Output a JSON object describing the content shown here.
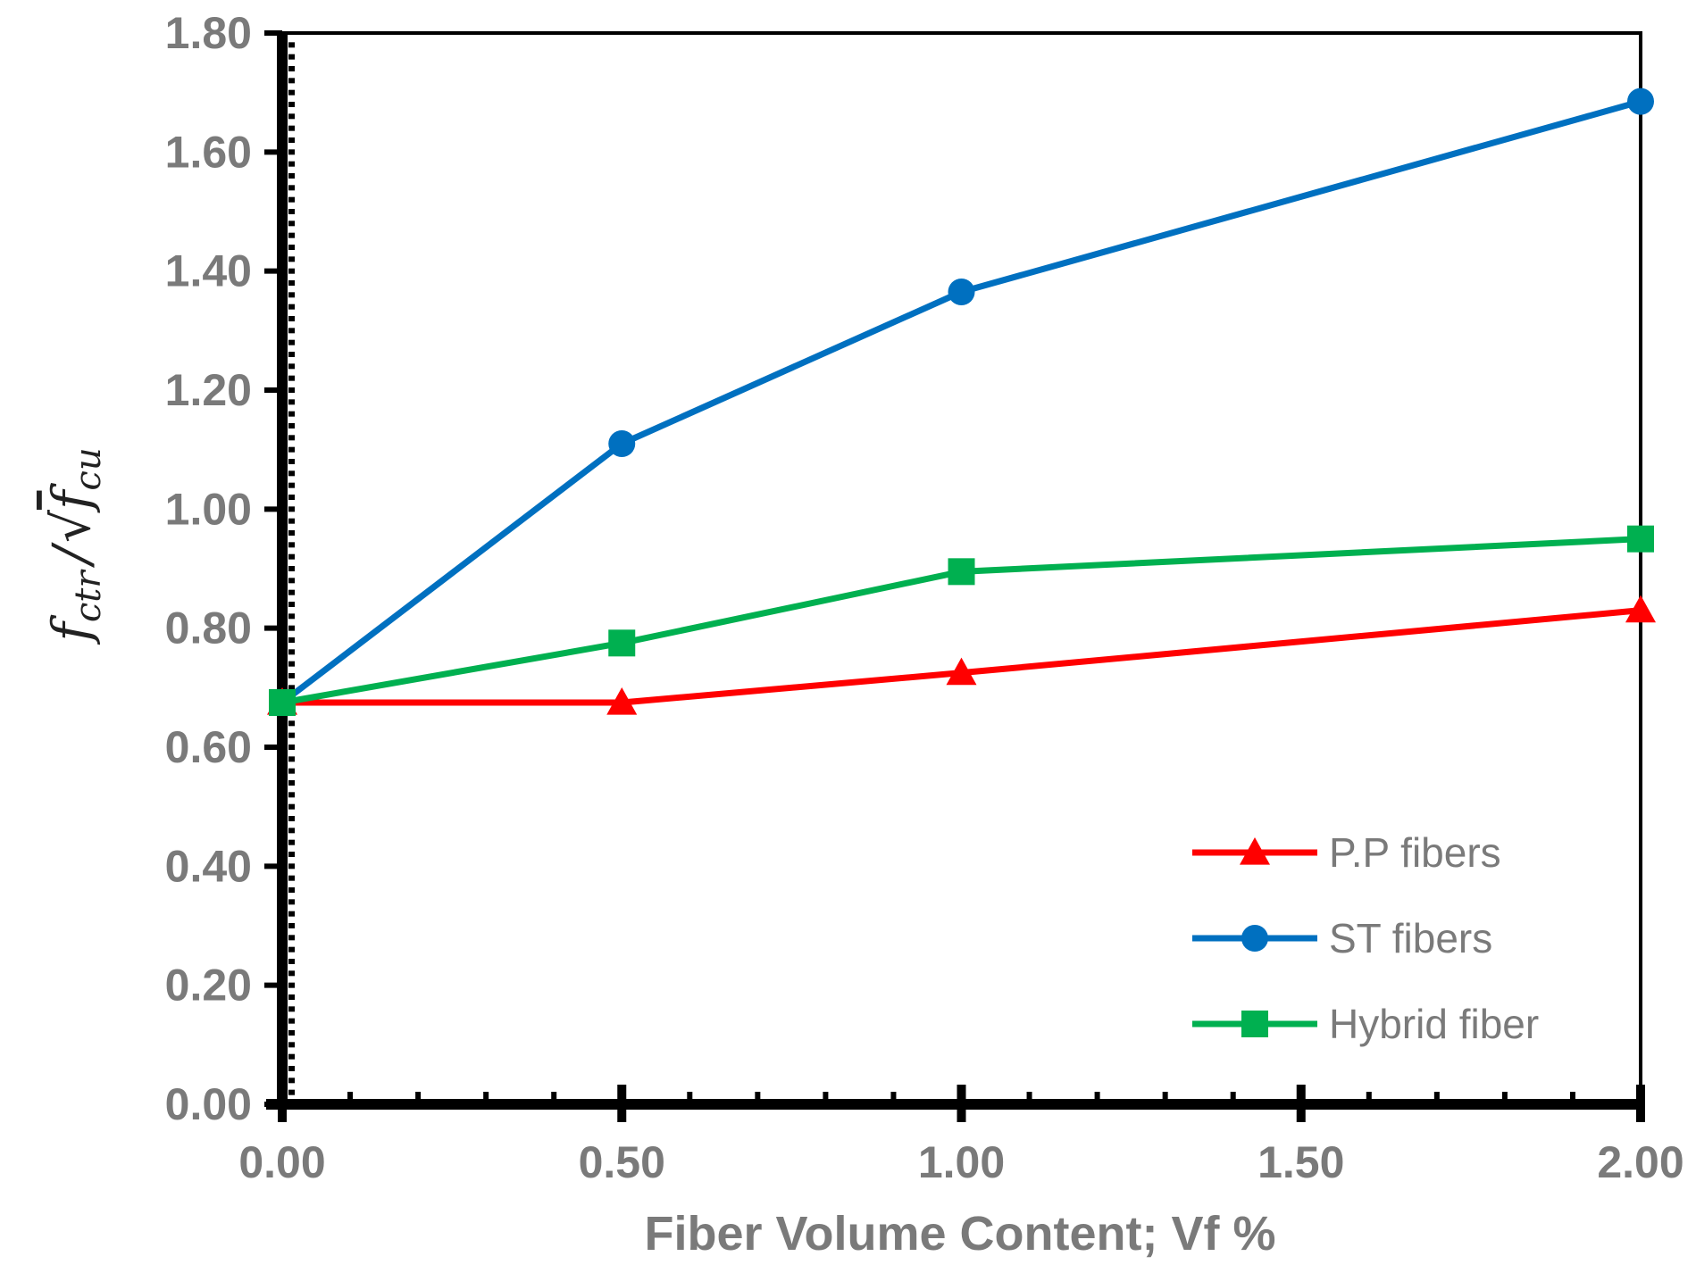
{
  "chart_data": {
    "type": "line",
    "title": "",
    "xlabel": "Fiber Volume Content; Vf %",
    "ylabel": {
      "numerator_symbol": "f",
      "numerator_subscript": "ctr",
      "separator": "/",
      "radical": "√",
      "denominator_symbol": "f",
      "denominator_subscript": "cu"
    },
    "xlim": [
      0,
      2
    ],
    "ylim": [
      0,
      1.8
    ],
    "xticks": [
      0,
      0.5,
      1,
      1.5,
      2
    ],
    "xtick_labels": [
      "0.00",
      "0.50",
      "1.00",
      "1.50",
      "2.00"
    ],
    "yticks": [
      0,
      0.2,
      0.4,
      0.6,
      0.8,
      1.0,
      1.2,
      1.4,
      1.6,
      1.8
    ],
    "ytick_labels": [
      "0.00",
      "0.20",
      "0.40",
      "0.60",
      "0.80",
      "1.00",
      "1.20",
      "1.40",
      "1.60",
      "1.80"
    ],
    "grid": false,
    "legend_position": "bottom-right",
    "series": [
      {
        "name": "P.P fibers",
        "color": "#ff0000",
        "marker": "triangle",
        "x": [
          0,
          0.5,
          1,
          2
        ],
        "y": [
          0.675,
          0.675,
          0.725,
          0.83
        ]
      },
      {
        "name": "ST fibers",
        "color": "#0070c0",
        "marker": "circle",
        "x": [
          0,
          0.5,
          1,
          2
        ],
        "y": [
          0.675,
          1.11,
          1.365,
          1.685
        ]
      },
      {
        "name": "Hybrid fiber",
        "color": "#00b050",
        "marker": "square",
        "x": [
          0,
          0.5,
          1,
          2
        ],
        "y": [
          0.675,
          0.775,
          0.895,
          0.95
        ]
      }
    ]
  }
}
